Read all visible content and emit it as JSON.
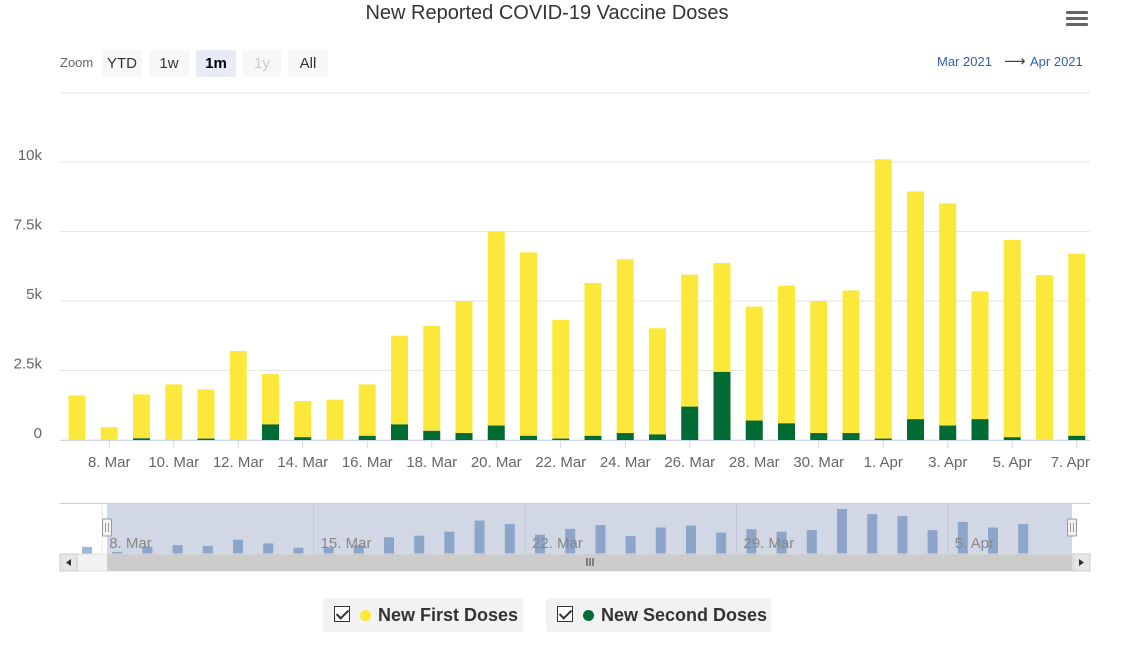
{
  "chart_data": {
    "type": "bar",
    "stacked": true,
    "title": "New Reported COVID-19 Vaccine Doses",
    "categories": [
      "7. Mar",
      "8. Mar",
      "9. Mar",
      "10. Mar",
      "11. Mar",
      "12. Mar",
      "13. Mar",
      "14. Mar",
      "15. Mar",
      "16. Mar",
      "17. Mar",
      "18. Mar",
      "19. Mar",
      "20. Mar",
      "21. Mar",
      "22. Mar",
      "23. Mar",
      "24. Mar",
      "25. Mar",
      "26. Mar",
      "27. Mar",
      "28. Mar",
      "29. Mar",
      "30. Mar",
      "31. Mar",
      "1. Apr",
      "2. Apr",
      "3. Apr",
      "4. Apr",
      "5. Apr",
      "6. Apr",
      "7. Apr"
    ],
    "series": [
      {
        "name": "New Second Doses",
        "color": "#006b33",
        "values": [
          0,
          0,
          60,
          0,
          50,
          0,
          560,
          100,
          0,
          150,
          560,
          330,
          250,
          520,
          150,
          50,
          150,
          250,
          200,
          1200,
          2450,
          700,
          600,
          250,
          250,
          50,
          750,
          520,
          750,
          100,
          0,
          150
        ]
      },
      {
        "name": "New First Doses",
        "color": "#fce83a",
        "values": [
          1600,
          460,
          1580,
          2000,
          1770,
          3200,
          1810,
          1300,
          1450,
          1850,
          3190,
          3770,
          4750,
          6980,
          6600,
          4270,
          5500,
          6250,
          3820,
          4750,
          3920,
          4100,
          4950,
          4750,
          5130,
          10050,
          8190,
          7990,
          4600,
          7100,
          5930,
          6550
        ]
      }
    ],
    "x_tick_labels": [
      "8. Mar",
      "10. Mar",
      "12. Mar",
      "14. Mar",
      "16. Mar",
      "18. Mar",
      "20. Mar",
      "22. Mar",
      "24. Mar",
      "26. Mar",
      "28. Mar",
      "30. Mar",
      "1. Apr",
      "3. Apr",
      "5. Apr",
      "7. Apr"
    ],
    "y_tick_labels": [
      "0",
      "2.5k",
      "5k",
      "7.5k",
      "10k"
    ],
    "y_ticks": [
      0,
      2500,
      5000,
      7500,
      10000
    ],
    "ylim": [
      0,
      12000
    ],
    "xlabel": "",
    "ylabel": "",
    "navigator": {
      "tick_labels": [
        "8. Mar",
        "15. Mar",
        "22. Mar",
        "29. Mar",
        "5. Apr"
      ],
      "tick_indices": [
        1,
        8,
        15,
        22,
        29
      ],
      "selected_from_index": 1
    }
  },
  "zoom": {
    "label": "Zoom",
    "buttons": [
      {
        "label": "YTD",
        "state": "normal"
      },
      {
        "label": "1w",
        "state": "normal"
      },
      {
        "label": "1m",
        "state": "active"
      },
      {
        "label": "1y",
        "state": "disabled"
      },
      {
        "label": "All",
        "state": "normal"
      }
    ]
  },
  "range": {
    "from": "Mar 2021",
    "arrow": "⟶",
    "to": "Apr 2021"
  },
  "menu_icon": "hamburger-menu-icon",
  "legend": [
    {
      "label": "New First Doses",
      "color": "#fce83a"
    },
    {
      "label": "New Second Doses",
      "color": "#006b33"
    }
  ]
}
